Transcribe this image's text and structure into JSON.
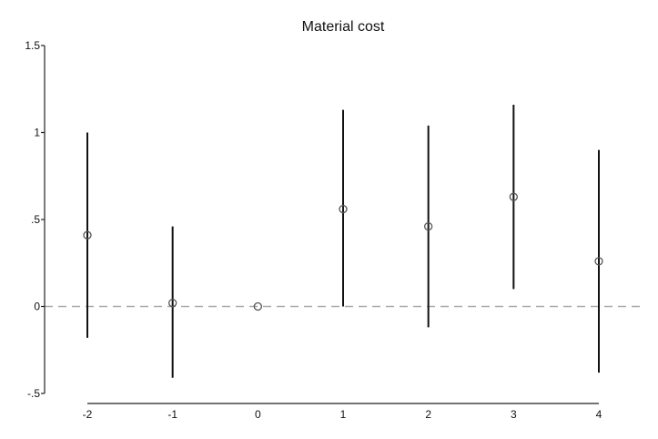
{
  "chart_data": {
    "type": "scatter",
    "title": "Material cost",
    "xlabel": "",
    "ylabel": "",
    "x": [
      -2,
      -1,
      0,
      1,
      2,
      3,
      4
    ],
    "x_tick_labels": [
      "-2",
      "-1",
      "0",
      "1",
      "2",
      "3",
      "4"
    ],
    "series": [
      {
        "estimate": [
          0.41,
          0.02,
          0.0,
          0.56,
          0.46,
          0.63,
          0.26
        ],
        "ci_lower": [
          -0.18,
          -0.41,
          0.0,
          0.0,
          -0.12,
          0.1,
          -0.38
        ],
        "ci_upper": [
          1.0,
          0.46,
          0.0,
          1.13,
          1.04,
          1.16,
          0.9
        ]
      }
    ],
    "y_ticks": [
      -0.5,
      0,
      0.5,
      1,
      1.5
    ],
    "y_tick_labels": [
      "-.5",
      "0",
      ".5",
      "1",
      "1.5"
    ],
    "ylim": [
      -0.5,
      1.5
    ],
    "xlim": [
      -2,
      4
    ],
    "reference_line": {
      "y": 0,
      "style": "dashed",
      "color": "#aaaaaa"
    },
    "grid": false,
    "legend": "none",
    "colors": {
      "ci": "#111111",
      "marker": "#555555"
    }
  }
}
